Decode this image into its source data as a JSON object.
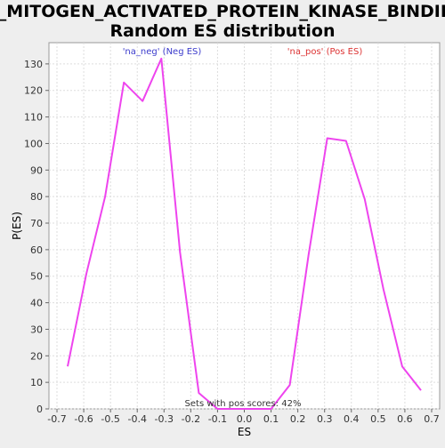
{
  "chart_data": {
    "type": "line",
    "title_line1": "GO_MITOGEN_ACTIVATED_PROTEIN_KINASE_BINDING:",
    "title_line2": "Random ES distribution",
    "xlabel": "ES",
    "ylabel": "P(ES)",
    "xlim": [
      -0.73,
      0.73
    ],
    "ylim": [
      0,
      138
    ],
    "x_ticks": [
      -0.7,
      -0.6,
      -0.5,
      -0.4,
      -0.3,
      -0.2,
      -0.1,
      0.0,
      0.1,
      0.2,
      0.3,
      0.4,
      0.5,
      0.6,
      0.7
    ],
    "x_tick_labels": [
      "-0.7",
      "-0.6",
      "-0.5",
      "-0.4",
      "-0.3",
      "-0.2",
      "-0.1",
      "0.0",
      "0.1",
      "0.2",
      "0.3",
      "0.4",
      "0.5",
      "0.6",
      "0.7"
    ],
    "y_ticks": [
      0,
      10,
      20,
      30,
      40,
      50,
      60,
      70,
      80,
      90,
      100,
      110,
      120,
      130
    ],
    "grid": true,
    "series": [
      {
        "name": "'na_neg' (Neg ES)",
        "color": "#ee44ee",
        "x": [
          -0.66,
          -0.59,
          -0.52,
          -0.45,
          -0.38,
          -0.31,
          -0.24,
          -0.17,
          -0.1,
          -0.03,
          0.03,
          0.1,
          0.17,
          0.24,
          0.31,
          0.38,
          0.45,
          0.52,
          0.59,
          0.66
        ],
        "y": [
          16,
          51,
          80,
          123,
          116,
          132,
          59,
          6,
          0,
          0,
          0,
          0,
          9,
          58,
          102,
          101,
          79,
          45,
          16,
          7
        ]
      }
    ],
    "legend": [
      {
        "label": "'na_neg' (Neg ES)",
        "color": "#3b3bcc"
      },
      {
        "label": "'na_pos' (Pos ES)",
        "color": "#dd3333"
      }
    ],
    "annotation": "Sets with pos scores: 42%"
  }
}
